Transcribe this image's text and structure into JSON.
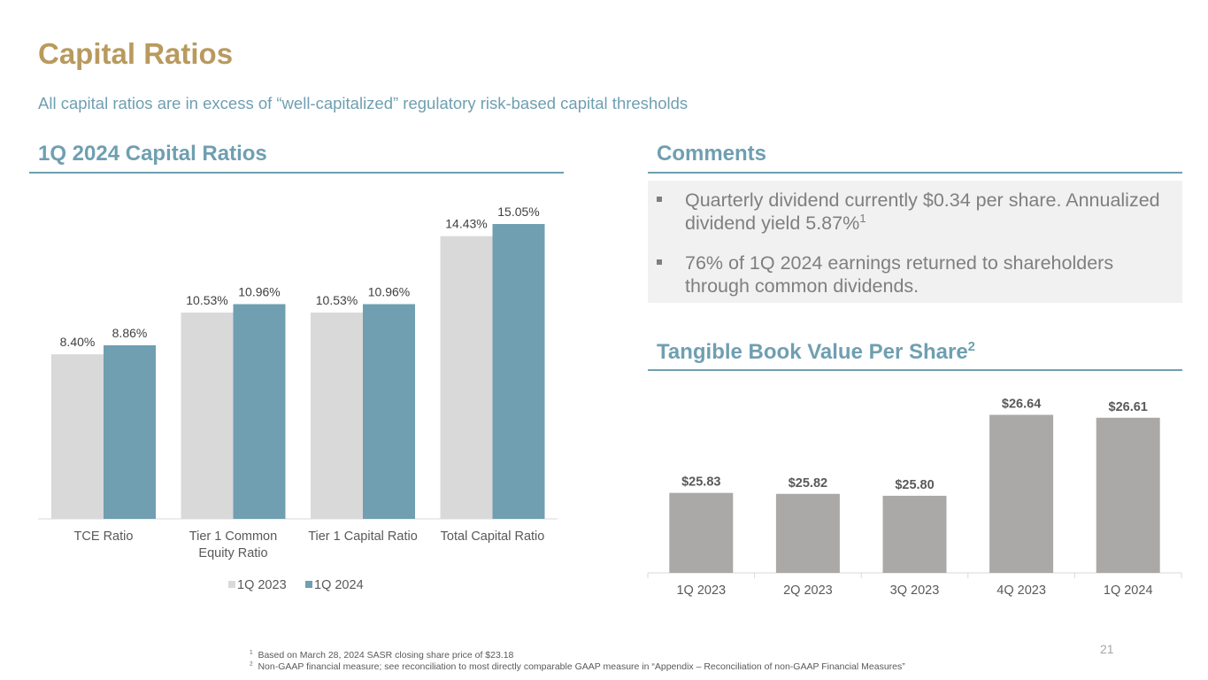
{
  "title": "Capital Ratios",
  "subtitle": "All capital ratios are in excess of “well-capitalized” regulatory risk-based capital thresholds",
  "capital_section_title": "1Q 2024 Capital Ratios",
  "comments": {
    "title": "Comments",
    "bullets": [
      {
        "text": "Quarterly dividend currently $0.34 per share. Annualized dividend yield 5.87%",
        "sup": "1"
      },
      {
        "text": "76% of 1Q 2024 earnings returned to shareholders through common dividends.",
        "sup": ""
      }
    ]
  },
  "tbv_section": {
    "title": "Tangible Book Value Per Share",
    "sup": "2"
  },
  "colors": {
    "title": "#B99A5E",
    "accent": "#6F9FB1",
    "series_2023": "#D9D9D9",
    "series_2024": "#6F9FB1",
    "tbv_bar": "#ABA9A7"
  },
  "chart_data": [
    {
      "type": "bar",
      "title": "1Q 2024 Capital Ratios",
      "categories": [
        "TCE Ratio",
        "Tier 1 Common Equity Ratio",
        "Tier 1 Capital Ratio",
        "Total Capital Ratio"
      ],
      "category_lines": [
        [
          "TCE Ratio"
        ],
        [
          "Tier 1 Common",
          "Equity Ratio"
        ],
        [
          "Tier 1 Capital Ratio"
        ],
        [
          "Total Capital Ratio"
        ]
      ],
      "series": [
        {
          "name": "1Q 2023",
          "values": [
            8.4,
            10.53,
            10.53,
            14.43
          ],
          "labels": [
            "8.40%",
            "10.53%",
            "10.53%",
            "14.43%"
          ]
        },
        {
          "name": "1Q 2024",
          "values": [
            8.86,
            10.96,
            10.96,
            15.05
          ],
          "labels": [
            "8.86%",
            "10.96%",
            "10.96%",
            "15.05%"
          ]
        }
      ],
      "ylim": [
        0,
        16
      ],
      "legend": "bottom",
      "grid": false
    },
    {
      "type": "bar",
      "title": "Tangible Book Value Per Share",
      "categories": [
        "1Q 2023",
        "2Q 2023",
        "3Q 2023",
        "4Q 2023",
        "1Q 2024"
      ],
      "values": [
        25.83,
        25.82,
        25.8,
        26.64,
        26.61
      ],
      "labels": [
        "$25.83",
        "$25.82",
        "$25.80",
        "$26.64",
        "$26.61"
      ],
      "ylim": [
        25.0,
        26.7
      ],
      "grid": false
    }
  ],
  "footnotes": [
    {
      "num": "1",
      "text": "Based on March 28, 2024 SASR closing share price of $23.18"
    },
    {
      "num": "2",
      "text": "Non-GAAP financial measure; see reconciliation to most directly comparable GAAP measure in “Appendix – Reconciliation of non-GAAP Financial Measures”"
    }
  ],
  "page_number": "21"
}
